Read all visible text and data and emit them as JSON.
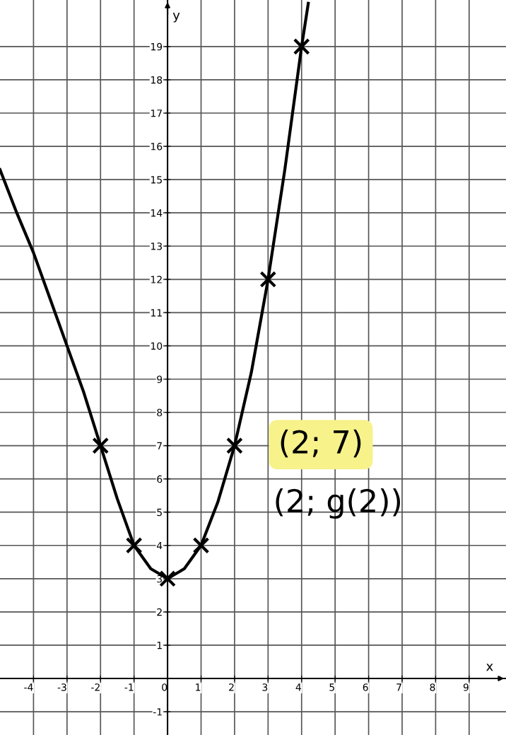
{
  "chart_data": {
    "type": "line",
    "xlabel": "x",
    "ylabel": "y",
    "series": [
      {
        "color": "#000000",
        "x": [
          -5.0,
          -4.5,
          -4,
          -3.5,
          -3,
          -2.5,
          -2,
          -1.5,
          -1,
          -0.5,
          0,
          0.5,
          1,
          1.5,
          2,
          2.5,
          3,
          3.5,
          4,
          4.2
        ],
        "values": [
          15.3,
          14.0,
          12.8,
          11.4,
          10.0,
          8.6,
          7,
          5.4,
          4,
          3.3,
          3,
          3.3,
          4,
          5.3,
          7,
          9.2,
          12,
          15.3,
          19,
          20.3
        ]
      },
      {
        "type": "scatter",
        "color": "#000000",
        "marker": "cross",
        "x": [
          -2,
          -1,
          0,
          1,
          2,
          3,
          4
        ],
        "values": [
          7,
          4,
          3,
          4,
          7,
          12,
          19
        ]
      }
    ],
    "annotations": [
      "(2; 7)",
      "(2; g(2))"
    ],
    "xlim": [
      -5.0,
      10.1
    ],
    "ylim": [
      -1.7,
      20.4
    ],
    "xticks": [
      -4,
      -3,
      -2,
      -1,
      0,
      1,
      2,
      3,
      4,
      5,
      6,
      7,
      8,
      9
    ],
    "yticks": [
      -1,
      1,
      2,
      3,
      4,
      5,
      6,
      7,
      8,
      9,
      10,
      11,
      12,
      13,
      14,
      15,
      16,
      17,
      18,
      19
    ],
    "grid": true
  }
}
